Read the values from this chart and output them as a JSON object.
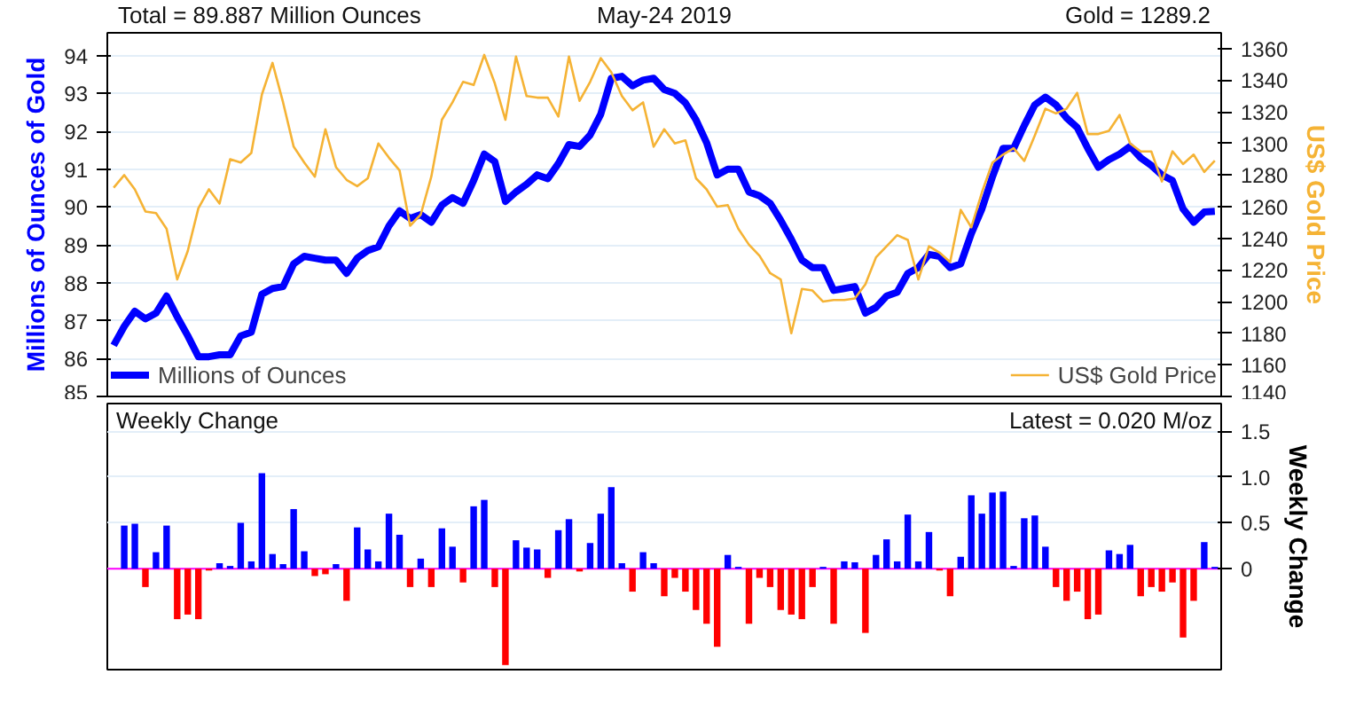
{
  "chart_data": [
    {
      "type": "line",
      "annotations": [
        "Total = 89.887 Million Ounces",
        "May-24 2019",
        "Gold = 1289.2"
      ],
      "ylabel": "Millions of Ounces of Gold",
      "y2label": "US$ Gold Price",
      "categories": [
        null,
        null,
        null,
        null,
        null,
        null,
        null,
        null,
        null,
        null,
        null,
        null,
        null,
        null,
        null,
        null,
        null,
        null,
        null,
        null,
        null,
        null,
        null,
        null,
        null,
        null,
        null,
        null,
        null,
        null,
        null,
        null,
        null,
        null,
        null,
        null,
        null,
        null,
        null,
        null,
        null,
        null,
        null,
        null,
        null,
        null,
        null,
        null,
        null,
        null,
        null,
        null,
        null,
        null,
        null,
        null,
        null,
        null,
        null,
        null,
        null,
        null,
        null,
        null,
        null,
        null,
        null,
        null,
        null,
        null,
        null,
        null,
        null,
        null,
        null,
        null,
        null,
        null,
        null,
        null,
        null,
        null,
        null,
        null,
        null,
        null,
        null,
        null,
        null,
        null,
        null,
        null,
        null,
        null,
        null,
        null,
        null,
        null,
        null,
        null,
        null,
        null,
        null,
        null,
        null
      ],
      "series": [
        {
          "name": "Millions of Ounces",
          "color": "#0000ff",
          "values": [
            86.35,
            86.85,
            87.25,
            87.05,
            87.2,
            87.65,
            87.1,
            86.6,
            86.05,
            86.05,
            86.1,
            86.1,
            86.6,
            86.7,
            87.7,
            87.85,
            87.9,
            88.5,
            88.7,
            88.65,
            88.6,
            88.6,
            88.25,
            88.65,
            88.85,
            88.95,
            89.5,
            89.9,
            89.7,
            89.8,
            89.6,
            90.05,
            90.25,
            90.1,
            90.7,
            91.4,
            91.2,
            90.15,
            90.4,
            90.6,
            90.85,
            90.75,
            91.15,
            91.65,
            91.6,
            91.9,
            92.45,
            93.4,
            93.45,
            93.2,
            93.35,
            93.4,
            93.1,
            93.0,
            92.75,
            92.3,
            91.7,
            90.85,
            91.0,
            91.0,
            90.4,
            90.3,
            90.1,
            89.65,
            89.15,
            88.6,
            88.4,
            88.4,
            87.8,
            87.85,
            87.9,
            87.2,
            87.35,
            87.65,
            87.75,
            88.25,
            88.4,
            88.75,
            88.7,
            88.4,
            88.5,
            89.3,
            89.95,
            90.8,
            91.55,
            91.55,
            92.15,
            92.7,
            92.9,
            92.7,
            92.35,
            92.1,
            91.55,
            91.05,
            91.25,
            91.4,
            91.6,
            91.3,
            91.1,
            90.85,
            90.7,
            89.95,
            89.6,
            89.87,
            89.887
          ]
        },
        {
          "name": "US$ Gold Price",
          "color": "#f5b335",
          "axis": "y2",
          "values": [
            1272,
            1280,
            1271,
            1257,
            1256,
            1246,
            1214,
            1232,
            1259,
            1271,
            1262,
            1290,
            1288,
            1294,
            1331,
            1351,
            1326,
            1298,
            1288,
            1279,
            1309,
            1285,
            1277,
            1273,
            1278,
            1300,
            1291,
            1283,
            1248,
            1255,
            1279,
            1315,
            1326,
            1339,
            1337,
            1356,
            1338,
            1315,
            1355,
            1330,
            1329,
            1329,
            1317,
            1355,
            1327,
            1339,
            1354,
            1345,
            1330,
            1321,
            1326,
            1298,
            1309,
            1300,
            1302,
            1278,
            1271,
            1260,
            1261,
            1246,
            1236,
            1229,
            1218,
            1214,
            1180,
            1208,
            1207,
            1200,
            1201,
            1201,
            1202,
            1211,
            1228,
            1235,
            1242,
            1239,
            1214,
            1235,
            1231,
            1225,
            1258,
            1247,
            1269,
            1288,
            1293,
            1297,
            1289,
            1305,
            1322,
            1319,
            1322,
            1332,
            1306,
            1306,
            1308,
            1318,
            1300,
            1295,
            1295,
            1276,
            1295,
            1287,
            1293,
            1282,
            1289.2
          ]
        }
      ],
      "ylim": [
        85,
        94.6
      ],
      "yticks": [
        85,
        86,
        87,
        88,
        89,
        90,
        91,
        92,
        93,
        94
      ],
      "y2lim": [
        1140,
        1370
      ],
      "y2ticks": [
        1140,
        1160,
        1180,
        1200,
        1220,
        1240,
        1260,
        1280,
        1300,
        1320,
        1340,
        1360
      ],
      "grid": "y",
      "legend": "bottom"
    },
    {
      "type": "bar",
      "title": "Weekly Change",
      "annotations": [
        "Latest = 0.020 M/oz"
      ],
      "ylabel": "Weekly Change",
      "categories": [
        null,
        null,
        null,
        null,
        null,
        null,
        null,
        null,
        null,
        null,
        null,
        null,
        null,
        null,
        null,
        null,
        null,
        null,
        null,
        null,
        null,
        null,
        null,
        null,
        null,
        null,
        null,
        null,
        null,
        null,
        null,
        null,
        null,
        null,
        null,
        null,
        null,
        null,
        null,
        null,
        null,
        null,
        null,
        null,
        null,
        null,
        null,
        null,
        null,
        null,
        null,
        null,
        null,
        null,
        null,
        null,
        null,
        null,
        null,
        null,
        null,
        null,
        null,
        null,
        null,
        null,
        null,
        null,
        null,
        null,
        null,
        null,
        null,
        null,
        null,
        null,
        null,
        null,
        null,
        null,
        null,
        null,
        null,
        null,
        null,
        null,
        null,
        null,
        null,
        null,
        null,
        null,
        null,
        null,
        null,
        null,
        null,
        null,
        null,
        null,
        null,
        null,
        null,
        null,
        null
      ],
      "values": [
        null,
        0.47,
        0.49,
        -0.2,
        0.18,
        0.47,
        -0.55,
        -0.5,
        -0.55,
        -0.02,
        0.06,
        0.03,
        0.5,
        0.08,
        1.04,
        0.16,
        0.05,
        0.65,
        0.19,
        -0.08,
        -0.06,
        0.05,
        -0.35,
        0.45,
        0.21,
        0.08,
        0.6,
        0.37,
        -0.2,
        0.11,
        -0.2,
        0.44,
        0.24,
        -0.15,
        0.68,
        0.75,
        -0.2,
        -1.05,
        0.31,
        0.23,
        0.21,
        -0.1,
        0.42,
        0.54,
        -0.03,
        0.28,
        0.6,
        0.89,
        0.06,
        -0.25,
        0.18,
        0.06,
        -0.3,
        -0.1,
        -0.25,
        -0.45,
        -0.6,
        -0.85,
        0.15,
        0.02,
        -0.6,
        -0.1,
        -0.2,
        -0.45,
        -0.5,
        -0.55,
        -0.2,
        0.02,
        -0.6,
        0.08,
        0.07,
        -0.7,
        0.15,
        0.32,
        0.08,
        0.59,
        0.08,
        0.4,
        -0.02,
        -0.3,
        0.13,
        0.8,
        0.6,
        0.83,
        0.84,
        0.03,
        0.55,
        0.58,
        0.24,
        -0.2,
        -0.35,
        -0.25,
        -0.55,
        -0.5,
        0.2,
        0.16,
        0.26,
        -0.3,
        -0.2,
        -0.25,
        -0.15,
        -0.75,
        -0.35,
        0.29,
        0.02
      ],
      "colors": [
        "#0000ff",
        "#0000ff",
        "#0000ff",
        "#ff0000",
        "#0000ff",
        "#0000ff",
        "#ff0000",
        "#ff0000",
        "#ff0000",
        "#ff0000",
        "#0000ff",
        "#0000ff",
        "#0000ff",
        "#0000ff",
        "#0000ff",
        "#0000ff",
        "#0000ff",
        "#0000ff",
        "#0000ff",
        "#ff0000",
        "#ff0000",
        "#0000ff",
        "#ff0000",
        "#0000ff",
        "#0000ff",
        "#0000ff",
        "#0000ff",
        "#0000ff",
        "#ff0000",
        "#0000ff",
        "#ff0000",
        "#0000ff",
        "#0000ff",
        "#ff0000",
        "#0000ff",
        "#0000ff",
        "#ff0000",
        "#ff0000",
        "#0000ff",
        "#0000ff",
        "#0000ff",
        "#ff0000",
        "#0000ff",
        "#0000ff",
        "#ff0000",
        "#0000ff",
        "#0000ff",
        "#0000ff",
        "#0000ff",
        "#ff0000",
        "#0000ff",
        "#0000ff",
        "#ff0000",
        "#ff0000",
        "#ff0000",
        "#ff0000",
        "#ff0000",
        "#ff0000",
        "#0000ff",
        "#0000ff",
        "#ff0000",
        "#ff0000",
        "#ff0000",
        "#ff0000",
        "#ff0000",
        "#ff0000",
        "#ff0000",
        "#0000ff",
        "#ff0000",
        "#0000ff",
        "#0000ff",
        "#ff0000",
        "#0000ff",
        "#0000ff",
        "#0000ff",
        "#0000ff",
        "#0000ff",
        "#0000ff",
        "#ff0000",
        "#ff0000",
        "#0000ff",
        "#0000ff",
        "#0000ff",
        "#0000ff",
        "#0000ff",
        "#0000ff",
        "#0000ff",
        "#0000ff",
        "#0000ff",
        "#ff0000",
        "#ff0000",
        "#ff0000",
        "#ff0000",
        "#ff0000",
        "#0000ff",
        "#0000ff",
        "#0000ff",
        "#ff0000",
        "#ff0000",
        "#ff0000",
        "#ff0000",
        "#ff0000",
        "#ff0000",
        "#0000ff",
        "#0000ff"
      ],
      "ylim": [
        -1.1,
        1.8
      ],
      "yticks": [
        0,
        0.5,
        {
          "value": 1,
          "label": "1.0"
        },
        1.5
      ],
      "ref_lines": [
        {
          "axis": "y",
          "value": 0,
          "color": "#ff00ff"
        }
      ],
      "grid": "y"
    }
  ]
}
